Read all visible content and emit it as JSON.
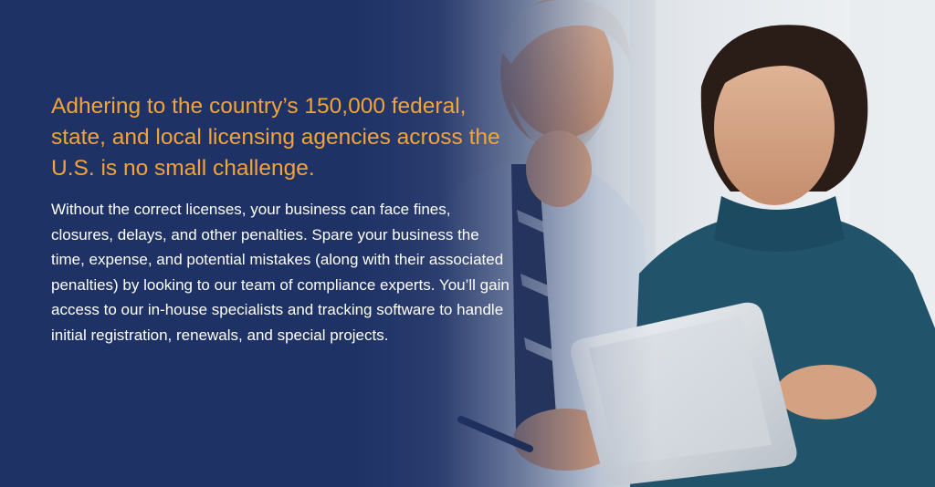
{
  "banner": {
    "headline": "Adhering to the country’s 150,000 federal, state, and local licensing agencies across the U.S. is no small challenge.",
    "body": "Without the correct licenses, your business can face fines, closures, delays, and other penalties. Spare your business the time, expense, and potential mistakes (along with their associated penalties) by looking to our team of compliance experts. You’ll gain access to our in-house specialists and tracking software to handle initial registration, renewals, and special projects."
  },
  "colors": {
    "background": "#1f3266",
    "headline": "#f2a33a",
    "body": "#ffffff"
  },
  "photo": {
    "subject": "businessman-and-businesswoman-with-tablet",
    "icons": [
      "man-figure",
      "woman-figure",
      "tablet-icon",
      "pen-icon"
    ]
  }
}
